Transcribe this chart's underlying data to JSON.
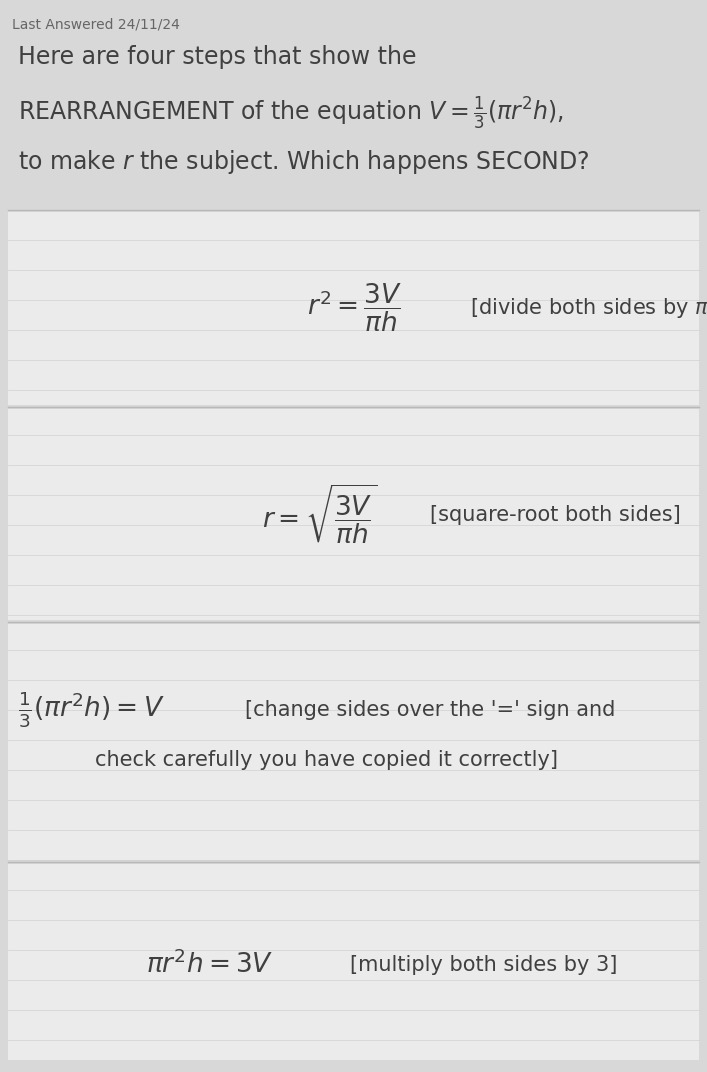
{
  "background_color": "#d8d8d8",
  "card_color": "#f0f0f0",
  "line_color": "#c0c0c0",
  "text_color": "#404040",
  "small_text_color": "#666666",
  "last_answered": "Last Answered 24/11/24",
  "intro_line1": "Here are four steps that show the",
  "intro_line2_plain": "REARRANGEMENT of the equation ",
  "intro_line3_plain": "to make ",
  "card1_math": "$r^2 = \\dfrac{3V}{\\pi h}$",
  "card1_note": "[divide both sides by $\\pi h$]",
  "card2_math": "$r = \\sqrt{\\dfrac{3V}{\\pi h}}$",
  "card2_note": "[square-root both sides]",
  "card3_math_pre": "$\\dfrac{1}{3}(\\pi r^2 h) = V$",
  "card3_note1": "[change sides over the '=' sign and",
  "card3_note2": "check carefully you have copied it correctly]",
  "card4_math": "$\\pi r^2 h = 3V$",
  "card4_note": "[multiply both sides by 3]",
  "header_fontsize": 10,
  "intro_fontsize": 17,
  "math_fontsize": 17,
  "note_fontsize": 15
}
